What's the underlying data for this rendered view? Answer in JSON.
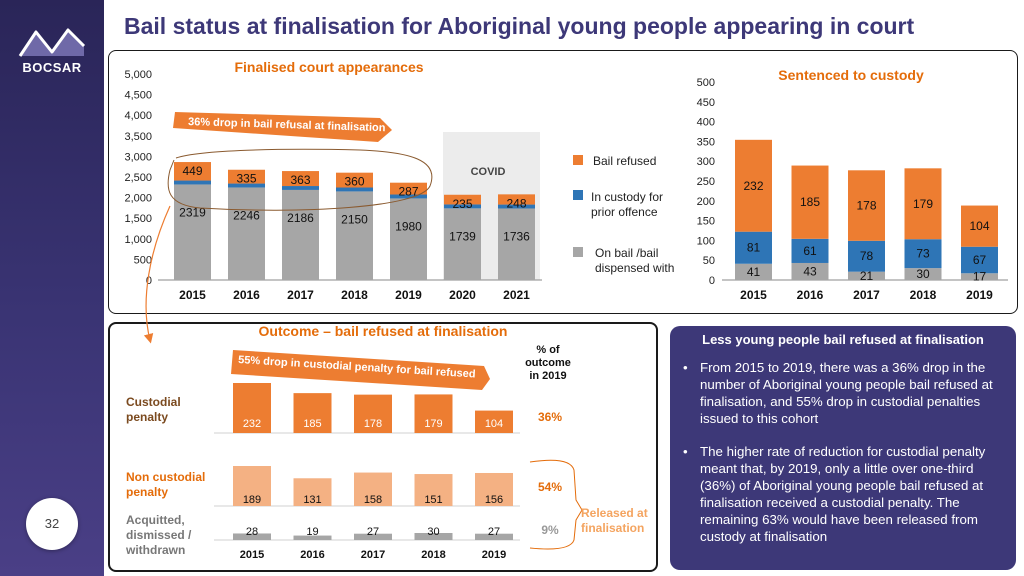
{
  "header": {
    "title": "Bail status at finalisation for Aboriginal young people appearing in court"
  },
  "brand": {
    "logo_text": "BOCSAR",
    "page_number": "32"
  },
  "colors": {
    "bail_refused": "#ed7d31",
    "in_custody": "#2e75b6",
    "on_bail": "#a6a6a6",
    "title": "#3d3878",
    "accent": "#e46c0a",
    "light_orange": "#f4b183"
  },
  "annotations": {
    "top_arrow": "36% drop  in bail refusal at finalisation",
    "bottom_arrow": "55% drop in custodial penalty for bail refused",
    "covid": "COVID",
    "released": "Released at finalisation"
  },
  "chart_data": [
    {
      "type": "bar",
      "title": "Finalised court appearances",
      "categories": [
        "2015",
        "2016",
        "2017",
        "2018",
        "2019",
        "2020",
        "2021"
      ],
      "series": [
        {
          "name": "On bail /bail dispensed with",
          "values": [
            2319,
            2246,
            2186,
            2150,
            1980,
            1739,
            1736
          ]
        },
        {
          "name": "In custody for prior offence",
          "values": [
            95,
            95,
            95,
            95,
            95,
            95,
            95
          ]
        },
        {
          "name": "Bail refused",
          "values": [
            449,
            335,
            363,
            360,
            287,
            235,
            248
          ]
        }
      ],
      "ylim": [
        0,
        5000
      ],
      "yticks": [
        "5,000",
        "4,500",
        "4,000",
        "3,500",
        "3,000",
        "2,500",
        "2,000",
        "1,500",
        "1,000",
        "500",
        "0"
      ],
      "legend": [
        "Bail refused",
        "In custody for prior offence",
        "On bail /bail dispensed with"
      ],
      "legend_position": "right"
    },
    {
      "type": "bar",
      "title": "Sentenced to custody",
      "categories": [
        "2015",
        "2016",
        "2017",
        "2018",
        "2019"
      ],
      "series": [
        {
          "name": "On bail /bail dispensed with",
          "values": [
            41,
            43,
            21,
            30,
            17
          ]
        },
        {
          "name": "In custody for prior offence",
          "values": [
            81,
            61,
            78,
            73,
            67
          ]
        },
        {
          "name": "Bail refused",
          "values": [
            232,
            185,
            178,
            179,
            104
          ]
        }
      ],
      "ylim": [
        0,
        500
      ],
      "yticks": [
        "500",
        "450",
        "400",
        "350",
        "300",
        "250",
        "200",
        "150",
        "100",
        "50",
        "0"
      ]
    },
    {
      "type": "bar",
      "title": "Outcome – bail refused at finalisation",
      "categories": [
        "2015",
        "2016",
        "2017",
        "2018",
        "2019"
      ],
      "column_header": "% of outcome in 2019",
      "rows": [
        {
          "label": "Custodial penalty",
          "values": [
            232,
            185,
            178,
            179,
            104
          ],
          "percent": "36%"
        },
        {
          "label": "Non custodial penalty",
          "values": [
            189,
            131,
            158,
            151,
            156
          ],
          "percent": "54%"
        },
        {
          "label": "Acquitted, dismissed / withdrawn",
          "values": [
            28,
            19,
            27,
            30,
            27
          ],
          "percent": "9%"
        }
      ]
    }
  ],
  "info": {
    "title": "Less young people bail refused at finalisation",
    "bullets": [
      "From 2015 to 2019, there was a 36% drop in the number of Aboriginal young people bail refused at finalisation, and 55% drop in custodial penalties issued to this cohort",
      "The higher rate of reduction for custodial penalty meant that, by 2019, only a little over one-third (36%) of Aboriginal young people bail refused at finalisation received a custodial penalty. The remaining 63% would have been released from custody at finalisation"
    ]
  }
}
